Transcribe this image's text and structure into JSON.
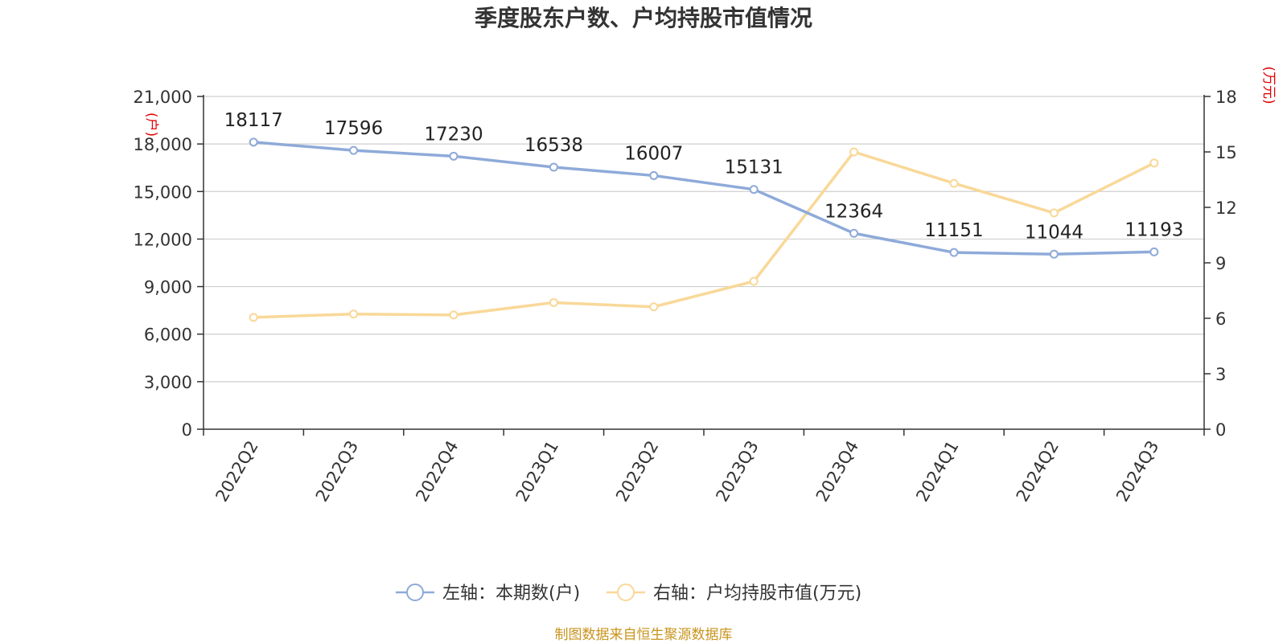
{
  "chart_data": {
    "type": "line",
    "title": "季度股东户数、户均持股市值情况",
    "categories": [
      "2022Q2",
      "2022Q3",
      "2022Q4",
      "2023Q1",
      "2023Q2",
      "2023Q3",
      "2023Q4",
      "2024Q1",
      "2024Q2",
      "2024Q3"
    ],
    "left_axis": {
      "unit": "(户)",
      "range": [
        0,
        21000
      ],
      "ticks": [
        0,
        3000,
        6000,
        9000,
        12000,
        15000,
        18000,
        21000
      ],
      "tick_labels": [
        "0",
        "3,000",
        "6,000",
        "9,000",
        "12,000",
        "15,000",
        "18,000",
        "21,000"
      ]
    },
    "right_axis": {
      "unit": "(万元)",
      "range": [
        0,
        18
      ],
      "ticks": [
        0,
        3,
        6,
        9,
        12,
        15,
        18
      ],
      "tick_labels": [
        "0",
        "3",
        "6",
        "9",
        "12",
        "15",
        "18"
      ]
    },
    "series": [
      {
        "name": "左轴：本期数(户)",
        "axis": "left",
        "color": "#8eaad9",
        "values": [
          18117,
          17596,
          17230,
          16538,
          16007,
          15131,
          12364,
          11151,
          11044,
          11193
        ],
        "labels": [
          "18117",
          "17596",
          "17230",
          "16538",
          "16007",
          "15131",
          "12364",
          "11151",
          "11044",
          "11193"
        ]
      },
      {
        "name": "右轴：户均持股市值(万元)",
        "axis": "right",
        "color": "#f9d898",
        "values": [
          6.05,
          6.23,
          6.18,
          6.85,
          6.62,
          8.0,
          15.0,
          13.3,
          11.7,
          14.4
        ]
      }
    ],
    "grid": true,
    "legend_position": "bottom-center"
  },
  "source": "制图数据来自恒生聚源数据库"
}
